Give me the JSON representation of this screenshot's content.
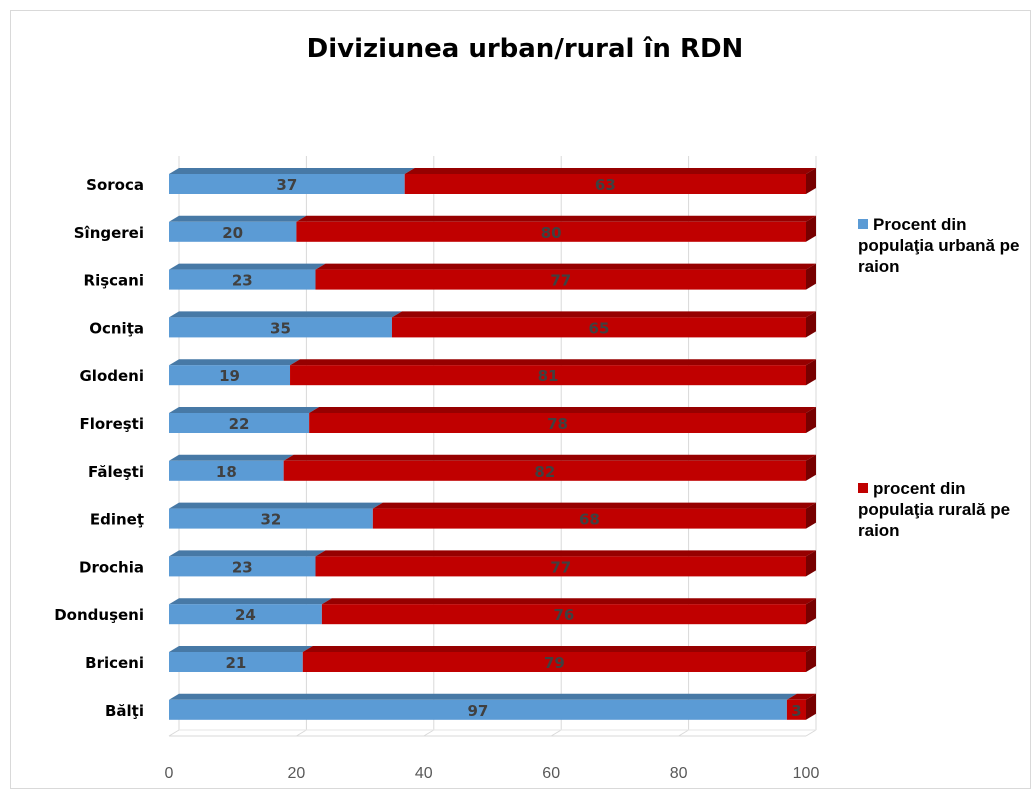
{
  "chart_data": {
    "type": "bar",
    "orientation": "horizontal",
    "stacked": true,
    "title": "Diviziunea urban/rural în RDN",
    "categories": [
      "Soroca",
      "Sîngerei",
      "Rişcani",
      "Ocniţa",
      "Glodeni",
      "Floreşti",
      "Făleşti",
      "Edineţ",
      "Drochia",
      "Donduşeni",
      "Briceni",
      "Bălţi"
    ],
    "series": [
      {
        "name": "Procent din populaţia urbană pe raion",
        "color": "#5b9bd5",
        "values": [
          37,
          20,
          23,
          35,
          19,
          22,
          18,
          32,
          23,
          24,
          21,
          97
        ]
      },
      {
        "name": "procent din populaţia rurală pe raion",
        "color": "#c00000",
        "values": [
          63,
          80,
          77,
          65,
          81,
          78,
          82,
          68,
          77,
          76,
          79,
          3
        ]
      }
    ],
    "xlim": [
      0,
      100
    ],
    "xticks": [
      0,
      20,
      40,
      60,
      80,
      100
    ],
    "grid": true,
    "legend_position": "right"
  }
}
